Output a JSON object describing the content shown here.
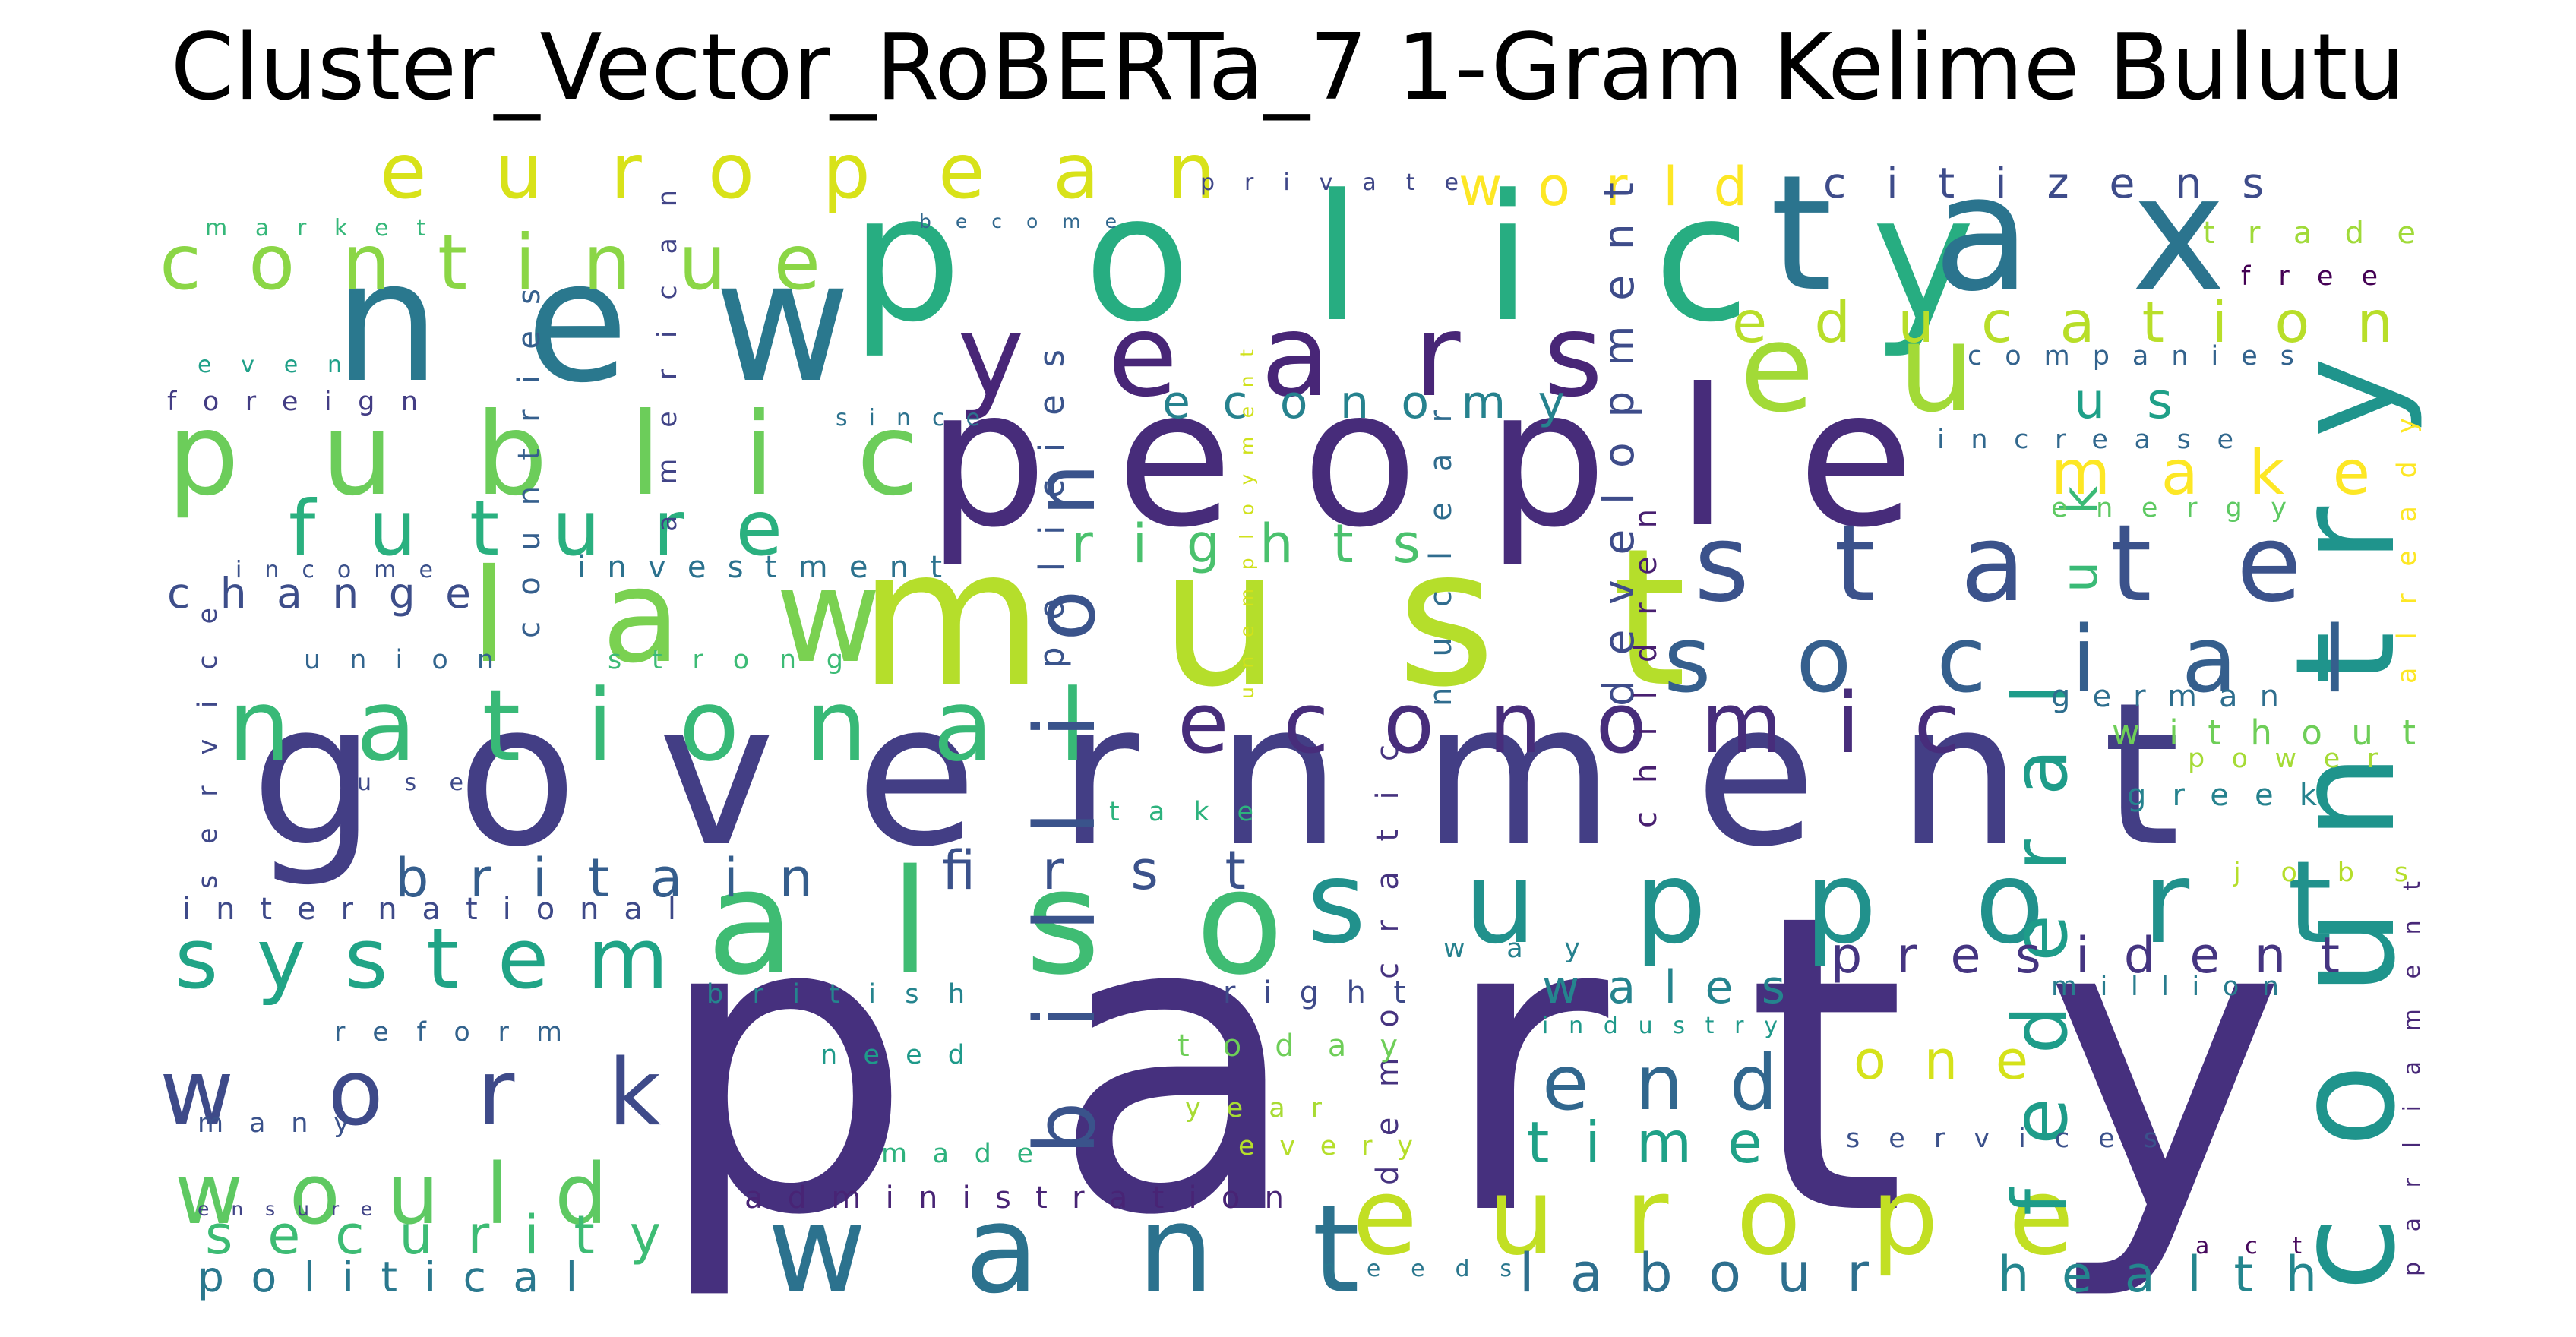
{
  "title": "Cluster_Vector_RoBERTa_7 1-Gram Kelime Bulutu",
  "words": [
    {
      "text": "party",
      "color": "#46307e"
    },
    {
      "text": "government",
      "color": "#433e85"
    },
    {
      "text": "people",
      "color": "#472c7a"
    },
    {
      "text": "policy",
      "color": "#27ad81"
    },
    {
      "text": "must",
      "color": "#b5de2b"
    },
    {
      "text": "new",
      "color": "#2a788e"
    },
    {
      "text": "tax",
      "color": "#2b748e"
    },
    {
      "text": "country",
      "color": "#1f948c"
    },
    {
      "text": "also",
      "color": "#3fbc73"
    },
    {
      "text": "want",
      "color": "#2c728e"
    },
    {
      "text": "law",
      "color": "#7ad151"
    },
    {
      "text": "europe",
      "color": "#c2df23"
    },
    {
      "text": "support",
      "color": "#21918c"
    },
    {
      "text": "public",
      "color": "#6ccd5a"
    },
    {
      "text": "national",
      "color": "#38b977"
    },
    {
      "text": "years",
      "color": "#482677"
    },
    {
      "text": "eu",
      "color": "#a2da37"
    },
    {
      "text": "state",
      "color": "#3b528b"
    },
    {
      "text": "social",
      "color": "#355f8d"
    },
    {
      "text": "economic",
      "color": "#472d7b"
    },
    {
      "text": "work",
      "color": "#3e4a89"
    },
    {
      "text": "would",
      "color": "#5ec962"
    },
    {
      "text": "system",
      "color": "#20a486"
    },
    {
      "text": "european",
      "color": "#d8e219"
    },
    {
      "text": "continue",
      "color": "#8bd646"
    },
    {
      "text": "billion",
      "color": "#3a538b"
    },
    {
      "text": "future",
      "color": "#2ab07f"
    },
    {
      "text": "federal",
      "color": "#1e9c89"
    },
    {
      "text": "economy",
      "color": "#26828e"
    },
    {
      "text": "education",
      "color": "#b8de29"
    },
    {
      "text": "labour",
      "color": "#2e6f8e"
    },
    {
      "text": "end",
      "color": "#31678e"
    },
    {
      "text": "security",
      "color": "#3dbc74"
    },
    {
      "text": "britain",
      "color": "#355e8d"
    },
    {
      "text": "first",
      "color": "#3b528b"
    },
    {
      "text": "president",
      "color": "#453581"
    },
    {
      "text": "time",
      "color": "#1fa187"
    },
    {
      "text": "wales",
      "color": "#25848e"
    },
    {
      "text": "health",
      "color": "#24868e"
    },
    {
      "text": "rights",
      "color": "#4ac16d"
    },
    {
      "text": "citizens",
      "color": "#3e4c8a"
    },
    {
      "text": "world",
      "color": "#fde725"
    },
    {
      "text": "political",
      "color": "#2a788e"
    },
    {
      "text": "change",
      "color": "#3d4e8a"
    },
    {
      "text": "make",
      "color": "#fde725"
    },
    {
      "text": "one",
      "color": "#d5e21a"
    },
    {
      "text": "us",
      "color": "#1fa088"
    },
    {
      "text": "uk",
      "color": "#3aba76"
    },
    {
      "text": "development",
      "color": "#3e4c8a"
    },
    {
      "text": "policies",
      "color": "#3a548c"
    },
    {
      "text": "democratic",
      "color": "#46337f"
    },
    {
      "text": "countries",
      "color": "#355f8d"
    },
    {
      "text": "american",
      "color": "#414487"
    },
    {
      "text": "children",
      "color": "#481f70"
    },
    {
      "text": "nuclear",
      "color": "#2f6c8e"
    },
    {
      "text": "parliament",
      "color": "#482878"
    },
    {
      "text": "unemployment",
      "color": "#d0e11c"
    },
    {
      "text": "already",
      "color": "#fde725"
    },
    {
      "text": "service",
      "color": "#3f4889"
    },
    {
      "text": "international",
      "color": "#3e4a89"
    },
    {
      "text": "investment",
      "color": "#2c728e"
    },
    {
      "text": "administration",
      "color": "#482475"
    },
    {
      "text": "companies",
      "color": "#33638d"
    },
    {
      "text": "increase",
      "color": "#31688e"
    },
    {
      "text": "german",
      "color": "#2e6e8e"
    },
    {
      "text": "without",
      "color": "#6ece58"
    },
    {
      "text": "power",
      "color": "#a5db36"
    },
    {
      "text": "greek",
      "color": "#26828e"
    },
    {
      "text": "jobs",
      "color": "#b5de2b"
    },
    {
      "text": "million",
      "color": "#287c8e"
    },
    {
      "text": "services",
      "color": "#3b518b"
    },
    {
      "text": "act",
      "color": "#46085c"
    },
    {
      "text": "industry",
      "color": "#1f998a"
    },
    {
      "text": "today",
      "color": "#6ece58"
    },
    {
      "text": "year",
      "color": "#a8db34"
    },
    {
      "text": "every",
      "color": "#b5de2b"
    },
    {
      "text": "made",
      "color": "#2db27d"
    },
    {
      "text": "needs",
      "color": "#2a778e"
    },
    {
      "text": "way",
      "color": "#26818e"
    },
    {
      "text": "right",
      "color": "#3e4a89"
    },
    {
      "text": "need",
      "color": "#1f9a8a"
    },
    {
      "text": "british",
      "color": "#25848e"
    },
    {
      "text": "reform",
      "color": "#33638d"
    },
    {
      "text": "many",
      "color": "#3b528b"
    },
    {
      "text": "ensure",
      "color": "#414487"
    },
    {
      "text": "strong",
      "color": "#3cbb75"
    },
    {
      "text": "union",
      "color": "#32658e"
    },
    {
      "text": "income",
      "color": "#3b518b"
    },
    {
      "text": "use",
      "color": "#3e4a89"
    },
    {
      "text": "take",
      "color": "#2db27d"
    },
    {
      "text": "since",
      "color": "#2c728e"
    },
    {
      "text": "foreign",
      "color": "#433d84"
    },
    {
      "text": "even",
      "color": "#1fa088"
    },
    {
      "text": "market",
      "color": "#35b779"
    },
    {
      "text": "become",
      "color": "#31688e"
    },
    {
      "text": "private",
      "color": "#3f4788"
    },
    {
      "text": "trade",
      "color": "#a0da39"
    },
    {
      "text": "free",
      "color": "#440154"
    },
    {
      "text": "energy",
      "color": "#5ec962"
    }
  ]
}
